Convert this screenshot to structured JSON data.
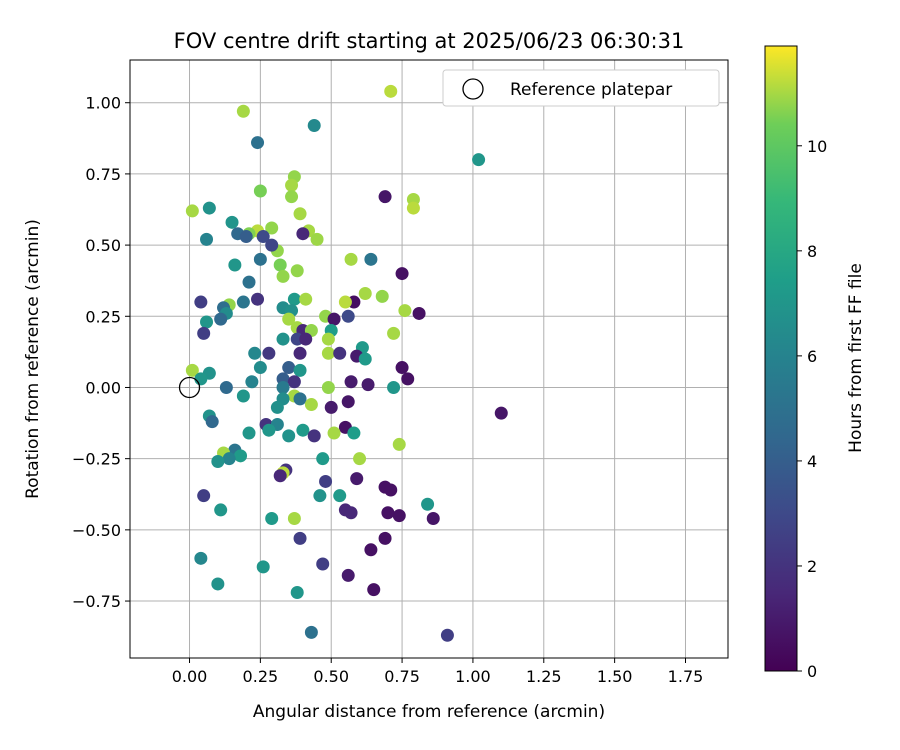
{
  "chart_data": {
    "type": "scatter",
    "title": "FOV centre drift starting at 2025/06/23 06:30:31",
    "xlabel": "Angular distance from reference (arcmin)",
    "ylabel": "Rotation from reference (arcmin)",
    "xlim": [
      -0.21,
      1.9
    ],
    "ylim": [
      -0.95,
      1.15
    ],
    "xticks": [
      0.0,
      0.25,
      0.5,
      0.75,
      1.0,
      1.25,
      1.5,
      1.75
    ],
    "xtick_labels": [
      "0.00",
      "0.25",
      "0.50",
      "0.75",
      "1.00",
      "1.25",
      "1.50",
      "1.75"
    ],
    "yticks": [
      -0.75,
      -0.5,
      -0.25,
      0.0,
      0.25,
      0.5,
      0.75,
      1.0
    ],
    "ytick_labels": [
      "−0.75",
      "−0.50",
      "−0.25",
      "0.00",
      "0.25",
      "0.50",
      "0.75",
      "1.00"
    ],
    "grid": true,
    "legend": {
      "placement": "top-right",
      "label": "Reference platepar"
    },
    "reference_point": {
      "x": 0.0,
      "y": 0.0
    },
    "colorbar": {
      "label": "Hours from first FF file",
      "colormap": "viridis",
      "range": [
        0,
        11.9
      ],
      "ticks": [
        0,
        2,
        4,
        6,
        8,
        10
      ],
      "tick_labels": [
        "0",
        "2",
        "4",
        "6",
        "8",
        "10"
      ]
    },
    "points": [
      {
        "x": 0.19,
        "y": 0.97,
        "c": 11.0
      },
      {
        "x": 0.71,
        "y": 1.04,
        "c": 11.2
      },
      {
        "x": 0.44,
        "y": 0.92,
        "c": 6.3
      },
      {
        "x": 0.24,
        "y": 0.86,
        "c": 5.0
      },
      {
        "x": 1.02,
        "y": 0.8,
        "c": 7.0
      },
      {
        "x": 0.37,
        "y": 0.74,
        "c": 10.8
      },
      {
        "x": 0.25,
        "y": 0.69,
        "c": 10.5
      },
      {
        "x": 0.36,
        "y": 0.71,
        "c": 11.0
      },
      {
        "x": 0.36,
        "y": 0.67,
        "c": 10.8
      },
      {
        "x": 0.69,
        "y": 0.67,
        "c": 0.8
      },
      {
        "x": 0.79,
        "y": 0.66,
        "c": 11.0
      },
      {
        "x": 0.79,
        "y": 0.63,
        "c": 11.2
      },
      {
        "x": 0.07,
        "y": 0.63,
        "c": 6.8
      },
      {
        "x": 0.01,
        "y": 0.62,
        "c": 11.0
      },
      {
        "x": 0.39,
        "y": 0.61,
        "c": 11.0
      },
      {
        "x": 0.15,
        "y": 0.58,
        "c": 6.9
      },
      {
        "x": 0.42,
        "y": 0.55,
        "c": 11.0
      },
      {
        "x": 0.24,
        "y": 0.55,
        "c": 11.2
      },
      {
        "x": 0.29,
        "y": 0.56,
        "c": 10.8
      },
      {
        "x": 0.21,
        "y": 0.54,
        "c": 10.6
      },
      {
        "x": 0.17,
        "y": 0.54,
        "c": 4.5
      },
      {
        "x": 0.2,
        "y": 0.53,
        "c": 4.0
      },
      {
        "x": 0.26,
        "y": 0.53,
        "c": 3.0
      },
      {
        "x": 0.06,
        "y": 0.52,
        "c": 6.0
      },
      {
        "x": 0.45,
        "y": 0.52,
        "c": 10.9
      },
      {
        "x": 0.4,
        "y": 0.54,
        "c": 1.5
      },
      {
        "x": 0.31,
        "y": 0.48,
        "c": 10.8
      },
      {
        "x": 0.29,
        "y": 0.5,
        "c": 2.8
      },
      {
        "x": 0.25,
        "y": 0.45,
        "c": 5.0
      },
      {
        "x": 0.57,
        "y": 0.45,
        "c": 11.0
      },
      {
        "x": 0.64,
        "y": 0.45,
        "c": 5.2
      },
      {
        "x": 0.32,
        "y": 0.43,
        "c": 10.5
      },
      {
        "x": 0.16,
        "y": 0.43,
        "c": 7.0
      },
      {
        "x": 0.38,
        "y": 0.41,
        "c": 10.8
      },
      {
        "x": 0.75,
        "y": 0.4,
        "c": 0.6
      },
      {
        "x": 0.33,
        "y": 0.39,
        "c": 10.8
      },
      {
        "x": 0.21,
        "y": 0.37,
        "c": 5.0
      },
      {
        "x": 0.62,
        "y": 0.33,
        "c": 11.0
      },
      {
        "x": 0.68,
        "y": 0.32,
        "c": 10.8
      },
      {
        "x": 0.24,
        "y": 0.31,
        "c": 2.0
      },
      {
        "x": 0.04,
        "y": 0.3,
        "c": 2.5
      },
      {
        "x": 0.58,
        "y": 0.3,
        "c": 0.5
      },
      {
        "x": 0.19,
        "y": 0.3,
        "c": 5.2
      },
      {
        "x": 0.37,
        "y": 0.31,
        "c": 7.2
      },
      {
        "x": 0.41,
        "y": 0.31,
        "c": 11.0
      },
      {
        "x": 0.55,
        "y": 0.3,
        "c": 11.2
      },
      {
        "x": 0.14,
        "y": 0.29,
        "c": 10.8
      },
      {
        "x": 0.12,
        "y": 0.28,
        "c": 4.8
      },
      {
        "x": 0.33,
        "y": 0.28,
        "c": 6.5
      },
      {
        "x": 0.36,
        "y": 0.27,
        "c": 6.7
      },
      {
        "x": 0.76,
        "y": 0.27,
        "c": 11.0
      },
      {
        "x": 0.81,
        "y": 0.26,
        "c": 0.6
      },
      {
        "x": 0.13,
        "y": 0.26,
        "c": 6.5
      },
      {
        "x": 0.56,
        "y": 0.25,
        "c": 3.0
      },
      {
        "x": 0.48,
        "y": 0.25,
        "c": 10.8
      },
      {
        "x": 0.51,
        "y": 0.24,
        "c": 0.8
      },
      {
        "x": 0.11,
        "y": 0.24,
        "c": 4.5
      },
      {
        "x": 0.35,
        "y": 0.24,
        "c": 11.0
      },
      {
        "x": 0.06,
        "y": 0.23,
        "c": 7.0
      },
      {
        "x": 0.38,
        "y": 0.21,
        "c": 11.0
      },
      {
        "x": 0.4,
        "y": 0.2,
        "c": 1.5
      },
      {
        "x": 0.43,
        "y": 0.2,
        "c": 10.8
      },
      {
        "x": 0.5,
        "y": 0.2,
        "c": 7.4
      },
      {
        "x": 0.72,
        "y": 0.19,
        "c": 11.0
      },
      {
        "x": 0.05,
        "y": 0.19,
        "c": 2.5
      },
      {
        "x": 0.33,
        "y": 0.17,
        "c": 6.8
      },
      {
        "x": 0.38,
        "y": 0.17,
        "c": 2.8
      },
      {
        "x": 0.41,
        "y": 0.17,
        "c": 1.5
      },
      {
        "x": 0.49,
        "y": 0.17,
        "c": 11.0
      },
      {
        "x": 0.61,
        "y": 0.14,
        "c": 7.2
      },
      {
        "x": 0.23,
        "y": 0.12,
        "c": 6.2
      },
      {
        "x": 0.28,
        "y": 0.12,
        "c": 2.2
      },
      {
        "x": 0.39,
        "y": 0.12,
        "c": 1.5
      },
      {
        "x": 0.49,
        "y": 0.12,
        "c": 11.0
      },
      {
        "x": 0.53,
        "y": 0.12,
        "c": 2.0
      },
      {
        "x": 0.59,
        "y": 0.11,
        "c": 1.0
      },
      {
        "x": 0.62,
        "y": 0.1,
        "c": 7.2
      },
      {
        "x": 0.75,
        "y": 0.07,
        "c": 0.6
      },
      {
        "x": 0.01,
        "y": 0.06,
        "c": 11.0
      },
      {
        "x": 0.07,
        "y": 0.05,
        "c": 6.8
      },
      {
        "x": 0.35,
        "y": 0.07,
        "c": 4.0
      },
      {
        "x": 0.39,
        "y": 0.06,
        "c": 7.0
      },
      {
        "x": 0.25,
        "y": 0.07,
        "c": 6.5
      },
      {
        "x": 0.04,
        "y": 0.03,
        "c": 7.0
      },
      {
        "x": 0.33,
        "y": 0.03,
        "c": 4.0
      },
      {
        "x": 0.37,
        "y": 0.02,
        "c": 2.0
      },
      {
        "x": 0.22,
        "y": 0.02,
        "c": 6.0
      },
      {
        "x": 0.57,
        "y": 0.02,
        "c": 1.0
      },
      {
        "x": 0.63,
        "y": 0.01,
        "c": 1.0
      },
      {
        "x": 0.77,
        "y": 0.03,
        "c": 0.6
      },
      {
        "x": 0.72,
        "y": 0.0,
        "c": 7.0
      },
      {
        "x": 0.13,
        "y": 0.0,
        "c": 4.6
      },
      {
        "x": 0.33,
        "y": 0.0,
        "c": 5.5
      },
      {
        "x": 0.49,
        "y": 0.0,
        "c": 10.8
      },
      {
        "x": 0.19,
        "y": -0.03,
        "c": 7.0
      },
      {
        "x": 0.37,
        "y": -0.03,
        "c": 11.0
      },
      {
        "x": 0.39,
        "y": -0.04,
        "c": 5.0
      },
      {
        "x": 0.33,
        "y": -0.04,
        "c": 6.5
      },
      {
        "x": 0.43,
        "y": -0.06,
        "c": 11.0
      },
      {
        "x": 0.56,
        "y": -0.05,
        "c": 0.8
      },
      {
        "x": 0.31,
        "y": -0.07,
        "c": 6.7
      },
      {
        "x": 0.5,
        "y": -0.07,
        "c": 1.0
      },
      {
        "x": 1.1,
        "y": -0.09,
        "c": 0.8
      },
      {
        "x": 0.07,
        "y": -0.1,
        "c": 6.8
      },
      {
        "x": 0.08,
        "y": -0.12,
        "c": 4.5
      },
      {
        "x": 0.27,
        "y": -0.13,
        "c": 2.0
      },
      {
        "x": 0.31,
        "y": -0.13,
        "c": 6.0
      },
      {
        "x": 0.55,
        "y": -0.14,
        "c": 0.6
      },
      {
        "x": 0.28,
        "y": -0.15,
        "c": 7.0
      },
      {
        "x": 0.4,
        "y": -0.15,
        "c": 7.2
      },
      {
        "x": 0.51,
        "y": -0.16,
        "c": 11.0
      },
      {
        "x": 0.58,
        "y": -0.16,
        "c": 7.4
      },
      {
        "x": 0.21,
        "y": -0.16,
        "c": 7.0
      },
      {
        "x": 0.35,
        "y": -0.17,
        "c": 6.8
      },
      {
        "x": 0.44,
        "y": -0.17,
        "c": 2.0
      },
      {
        "x": 0.16,
        "y": -0.22,
        "c": 5.2
      },
      {
        "x": 0.12,
        "y": -0.23,
        "c": 11.0
      },
      {
        "x": 0.18,
        "y": -0.24,
        "c": 7.3
      },
      {
        "x": 0.14,
        "y": -0.25,
        "c": 6.0
      },
      {
        "x": 0.47,
        "y": -0.25,
        "c": 7.2
      },
      {
        "x": 0.74,
        "y": -0.2,
        "c": 11.0
      },
      {
        "x": 0.6,
        "y": -0.25,
        "c": 11.0
      },
      {
        "x": 0.1,
        "y": -0.26,
        "c": 6.8
      },
      {
        "x": 0.34,
        "y": -0.29,
        "c": 2.0
      },
      {
        "x": 0.33,
        "y": -0.3,
        "c": 11.2
      },
      {
        "x": 0.32,
        "y": -0.31,
        "c": 1.5
      },
      {
        "x": 0.59,
        "y": -0.32,
        "c": 1.0
      },
      {
        "x": 0.48,
        "y": -0.33,
        "c": 2.5
      },
      {
        "x": 0.69,
        "y": -0.35,
        "c": 0.6
      },
      {
        "x": 0.71,
        "y": -0.36,
        "c": 0.6
      },
      {
        "x": 0.05,
        "y": -0.38,
        "c": 2.5
      },
      {
        "x": 0.46,
        "y": -0.38,
        "c": 6.8
      },
      {
        "x": 0.53,
        "y": -0.38,
        "c": 7.2
      },
      {
        "x": 0.84,
        "y": -0.41,
        "c": 7.0
      },
      {
        "x": 0.11,
        "y": -0.43,
        "c": 7.0
      },
      {
        "x": 0.55,
        "y": -0.43,
        "c": 1.5
      },
      {
        "x": 0.57,
        "y": -0.44,
        "c": 1.5
      },
      {
        "x": 0.7,
        "y": -0.44,
        "c": 0.6
      },
      {
        "x": 0.74,
        "y": -0.45,
        "c": 0.6
      },
      {
        "x": 0.86,
        "y": -0.46,
        "c": 0.8
      },
      {
        "x": 0.29,
        "y": -0.46,
        "c": 7.2
      },
      {
        "x": 0.37,
        "y": -0.46,
        "c": 11.0
      },
      {
        "x": 0.39,
        "y": -0.53,
        "c": 2.5
      },
      {
        "x": 0.69,
        "y": -0.53,
        "c": 0.6
      },
      {
        "x": 0.64,
        "y": -0.57,
        "c": 0.6
      },
      {
        "x": 0.04,
        "y": -0.6,
        "c": 6.2
      },
      {
        "x": 0.47,
        "y": -0.62,
        "c": 2.5
      },
      {
        "x": 0.26,
        "y": -0.63,
        "c": 7.0
      },
      {
        "x": 0.56,
        "y": -0.66,
        "c": 1.0
      },
      {
        "x": 0.1,
        "y": -0.69,
        "c": 6.8
      },
      {
        "x": 0.65,
        "y": -0.71,
        "c": 0.6
      },
      {
        "x": 0.38,
        "y": -0.72,
        "c": 7.0
      },
      {
        "x": 0.43,
        "y": -0.86,
        "c": 5.0
      },
      {
        "x": 0.91,
        "y": -0.87,
        "c": 2.5
      }
    ]
  }
}
